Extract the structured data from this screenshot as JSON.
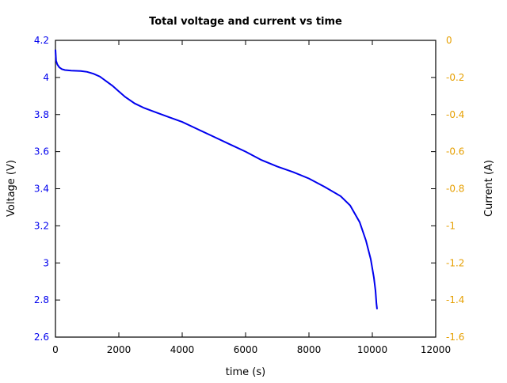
{
  "chart_data": {
    "type": "line",
    "title": "Total voltage and current vs time",
    "xlabel": "time (s)",
    "ylabel": "Voltage (V)",
    "y2label": "Current (A)",
    "xlim": [
      0,
      12000
    ],
    "ylim": [
      2.6,
      4.2
    ],
    "y2lim": [
      -1.6,
      0
    ],
    "xticks": [
      "0",
      "2000",
      "4000",
      "6000",
      "8000",
      "10000",
      "12000"
    ],
    "yticks": [
      "2.6",
      "2.8",
      "3",
      "3.2",
      "3.4",
      "3.6",
      "3.8",
      "4",
      "4.2"
    ],
    "y2ticks": [
      "-1.6",
      "-1.4",
      "-1.2",
      "-1",
      "-0.8",
      "-0.6",
      "-0.4",
      "-0.2",
      "0"
    ],
    "grid": false,
    "colors": {
      "voltage": "#0000ee",
      "current_axis": "#e69f00",
      "axes": "#000000"
    },
    "series": [
      {
        "name": "Voltage",
        "axis": "left",
        "x": [
          0,
          20,
          60,
          120,
          200,
          300,
          500,
          800,
          1000,
          1200,
          1400,
          1600,
          1800,
          2000,
          2200,
          2500,
          2800,
          3200,
          3600,
          4000,
          4500,
          5000,
          5500,
          6000,
          6500,
          7000,
          7500,
          8000,
          8500,
          9000,
          9300,
          9600,
          9800,
          9950,
          10050,
          10100,
          10130,
          10150
        ],
        "values": [
          4.15,
          4.09,
          4.07,
          4.055,
          4.045,
          4.04,
          4.037,
          4.035,
          4.03,
          4.02,
          4.005,
          3.98,
          3.955,
          3.925,
          3.895,
          3.86,
          3.835,
          3.81,
          3.785,
          3.76,
          3.72,
          3.68,
          3.64,
          3.6,
          3.555,
          3.52,
          3.49,
          3.455,
          3.41,
          3.36,
          3.31,
          3.22,
          3.12,
          3.02,
          2.92,
          2.85,
          2.78,
          2.75
        ]
      }
    ]
  }
}
